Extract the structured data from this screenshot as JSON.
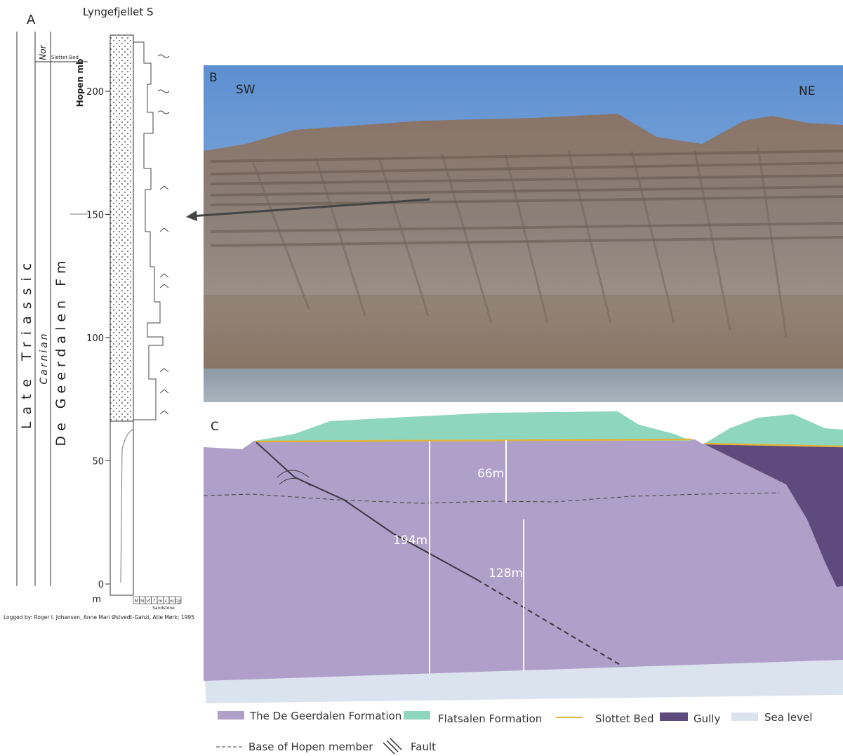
{
  "panel_a": {
    "label": "A",
    "title": "Lyngefjellet S",
    "era": "Late Triassic",
    "stage_upper": "Nor",
    "stage_lower": "Carnian",
    "formation": "De Geerdalen Fm",
    "member": "Hopen mb",
    "bed": "Slottet Bed",
    "depth_ticks": [
      0,
      50,
      100,
      150,
      200
    ],
    "depth_unit": "m",
    "grain_scale": [
      "M",
      "Si",
      "vf",
      "f",
      "m",
      "c",
      "vc",
      "Cgl"
    ],
    "grain_group": "Sandstone",
    "credit": "Logged by: Roger I. Johansen, Anne Mari Østvedt-Gahzi, Atle Mørk; 1995"
  },
  "panel_b": {
    "label": "B",
    "left": "SW",
    "right": "NE"
  },
  "panel_c": {
    "label": "C",
    "measurements": [
      "66m",
      "194m",
      "128m"
    ]
  },
  "legend": [
    "The De Geerdalen Formation",
    "Flatsalen Formation",
    "Slottet Bed",
    "Gully",
    "Sea level",
    "Base of Hopen member",
    "Fault"
  ]
}
